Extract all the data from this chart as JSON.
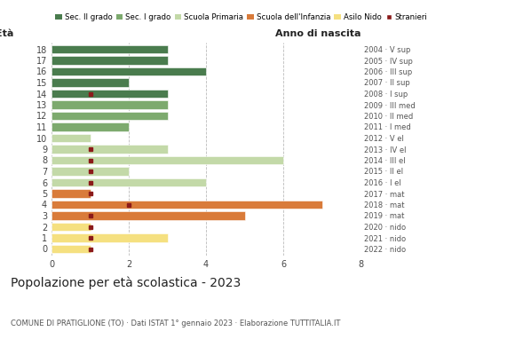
{
  "ages": [
    18,
    17,
    16,
    15,
    14,
    13,
    12,
    11,
    10,
    9,
    8,
    7,
    6,
    5,
    4,
    3,
    2,
    1,
    0
  ],
  "right_labels": [
    "2004 · V sup",
    "2005 · IV sup",
    "2006 · III sup",
    "2007 · II sup",
    "2008 · I sup",
    "2009 · III med",
    "2010 · II med",
    "2011 · I med",
    "2012 · V el",
    "2013 · IV el",
    "2014 · III el",
    "2015 · II el",
    "2016 · I el",
    "2017 · mat",
    "2018 · mat",
    "2019 · mat",
    "2020 · nido",
    "2021 · nido",
    "2022 · nido"
  ],
  "bar_values": [
    3,
    3,
    4,
    2,
    3,
    3,
    3,
    2,
    1,
    3,
    6,
    2,
    4,
    1,
    7,
    5,
    1,
    3,
    1
  ],
  "bar_colors": [
    "#4a7c4e",
    "#4a7c4e",
    "#4a7c4e",
    "#4a7c4e",
    "#4a7c4e",
    "#7daa6e",
    "#7daa6e",
    "#7daa6e",
    "#c3d9a8",
    "#c3d9a8",
    "#c3d9a8",
    "#c3d9a8",
    "#c3d9a8",
    "#d97b3a",
    "#d97b3a",
    "#d97b3a",
    "#f5e080",
    "#f5e080",
    "#f5e080"
  ],
  "stranieri_values": [
    0,
    0,
    0,
    0,
    1,
    0,
    0,
    0,
    0,
    1,
    1,
    1,
    1,
    1,
    2,
    1,
    1,
    1,
    1
  ],
  "stranieri_color": "#8b1a1a",
  "legend_labels": [
    "Sec. II grado",
    "Sec. I grado",
    "Scuola Primaria",
    "Scuola dell'Infanzia",
    "Asilo Nido",
    "Stranieri"
  ],
  "legend_colors": [
    "#4a7c4e",
    "#7daa6e",
    "#c3d9a8",
    "#d97b3a",
    "#f5e080",
    "#8b1a1a"
  ],
  "title": "Popolazione per età scolastica - 2023",
  "subtitle": "COMUNE DI PRATIGLIONE (TO) · Dati ISTAT 1° gennaio 2023 · Elaborazione TUTTITALIA.IT",
  "xlabel_eta": "Età",
  "xlabel_anno": "Anno di nascita",
  "xlim": [
    0,
    8
  ],
  "xticks": [
    0,
    2,
    4,
    6,
    8
  ],
  "background_color": "#ffffff",
  "grid_color": "#bbbbbb"
}
